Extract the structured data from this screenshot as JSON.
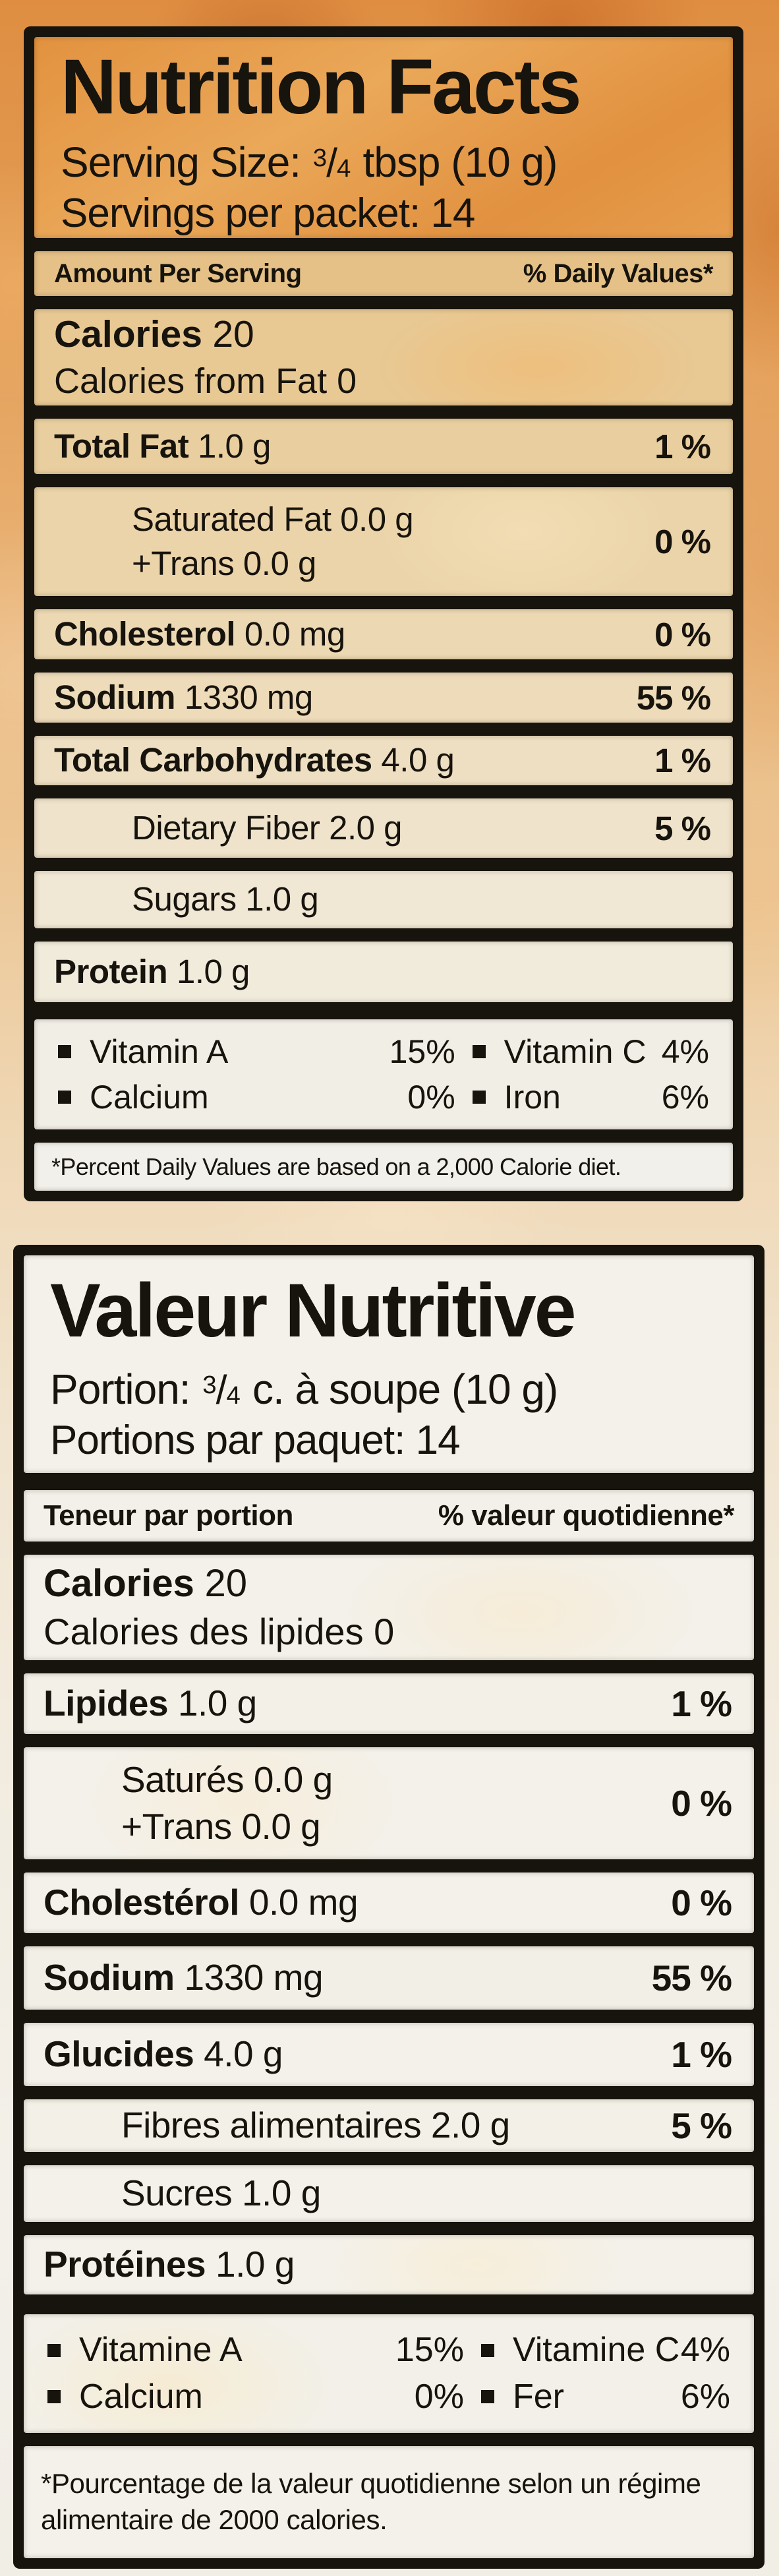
{
  "colors": {
    "ink": "#17130d",
    "border_black": "#17130d",
    "package_orange": "#df8e41",
    "row_tan": "#e8c994",
    "row_cream": "#f3f1ea"
  },
  "english": {
    "title": "Nutrition Facts",
    "serving": {
      "prefix": "Serving Size: ",
      "frac_num": "3",
      "frac_slash": "/",
      "frac_den": "4",
      "suffix": " tbsp (10 g)"
    },
    "servings_per_packet": "Servings per packet: 14",
    "header": {
      "left": "Amount Per Serving",
      "right": "% Daily Values*"
    },
    "calories": {
      "bold": "Calories",
      "rest": "20",
      "line2": "Calories from Fat 0"
    },
    "rows": [
      {
        "bold": "Total Fat",
        "rest": "1.0 g",
        "dv": "1 %"
      },
      {
        "bold": "",
        "rest": "Saturated Fat 0.0 g",
        "line2": "+Trans 0.0 g",
        "dv": "0 %"
      },
      {
        "bold": "Cholesterol",
        "rest": "0.0 mg",
        "dv": "0 %"
      },
      {
        "bold": "Sodium",
        "rest": "1330 mg",
        "dv": "55 %"
      },
      {
        "bold": "Total Carbohydrates",
        "rest": "4.0 g",
        "dv": "1 %"
      },
      {
        "bold": "",
        "rest": "Dietary Fiber 2.0 g",
        "dv": "5 %"
      },
      {
        "bold": "",
        "rest": "Sugars 1.0 g",
        "dv": ""
      },
      {
        "bold": "Protein",
        "rest": "1.0 g",
        "dv": ""
      }
    ],
    "vitamins": [
      {
        "name": "Vitamin A",
        "value": "15%"
      },
      {
        "name": "Vitamin C",
        "value": "4%"
      },
      {
        "name": "Calcium",
        "value": "0%"
      },
      {
        "name": "Iron",
        "value": "6%"
      }
    ],
    "footnote": "*Percent Daily Values are based on a 2,000 Calorie diet."
  },
  "french": {
    "title": "Valeur Nutritive",
    "serving": {
      "prefix": "Portion: ",
      "frac_num": "3",
      "frac_slash": "/",
      "frac_den": "4",
      "suffix": " c. à soupe (10 g)"
    },
    "servings_per_packet": "Portions par paquet: 14",
    "header": {
      "left": "Teneur par portion",
      "right": "% valeur quotidienne*"
    },
    "calories": {
      "bold": "Calories",
      "rest": "20",
      "line2": "Calories des lipides 0"
    },
    "rows": [
      {
        "bold": "Lipides",
        "rest": "1.0 g",
        "dv": "1 %"
      },
      {
        "bold": "",
        "rest": "Saturés 0.0 g",
        "line2": "+Trans 0.0 g",
        "dv": "0 %"
      },
      {
        "bold": "Cholestérol",
        "rest": "0.0 mg",
        "dv": "0 %"
      },
      {
        "bold": "Sodium",
        "rest": "1330 mg",
        "dv": "55 %"
      },
      {
        "bold": "Glucides",
        "rest": "4.0 g",
        "dv": "1 %"
      },
      {
        "bold": "",
        "rest": "Fibres alimentaires 2.0 g",
        "dv": "5 %"
      },
      {
        "bold": "",
        "rest": "Sucres 1.0 g",
        "dv": ""
      },
      {
        "bold": "Protéines",
        "rest": "1.0 g",
        "dv": ""
      }
    ],
    "vitamins": [
      {
        "name": "Vitamine A",
        "value": "15%"
      },
      {
        "name": "Vitamine C",
        "value": "4%"
      },
      {
        "name": "Calcium",
        "value": "0%"
      },
      {
        "name": "Fer",
        "value": "6%"
      }
    ],
    "footnote": "*Pourcentage de la valeur quotidienne selon un régime alimentaire de 2000 calories."
  }
}
